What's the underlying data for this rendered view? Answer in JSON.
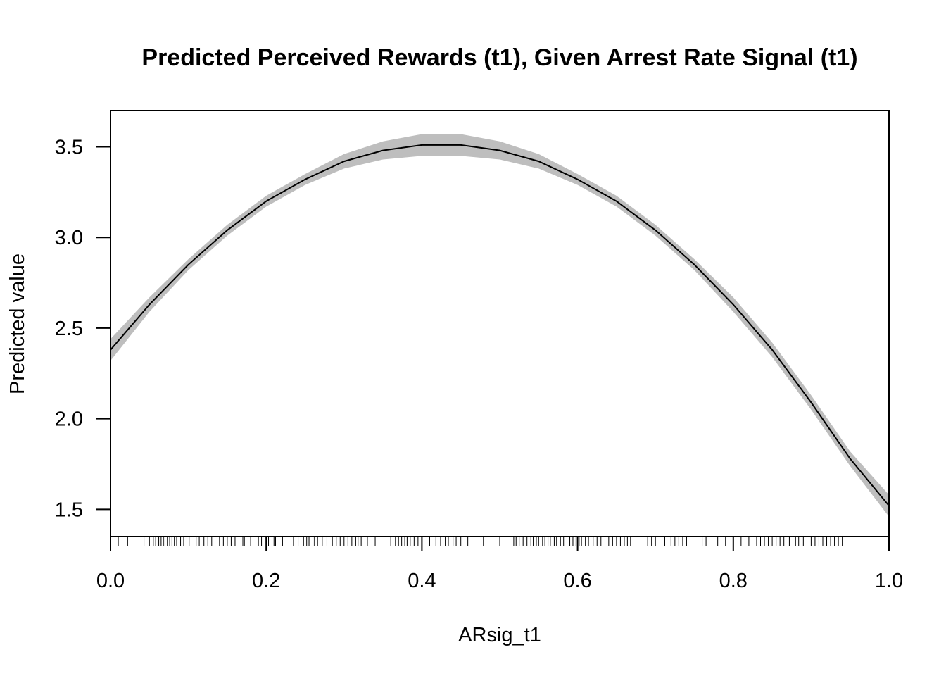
{
  "chart_data": {
    "type": "line",
    "title": "Predicted Perceived Rewards (t1), Given Arrest Rate Signal (t1)",
    "xlabel": "ARsig_t1",
    "ylabel": "Predicted value",
    "xlim": [
      0.0,
      1.0
    ],
    "ylim": [
      1.35,
      3.7
    ],
    "x_ticks": [
      0.0,
      0.2,
      0.4,
      0.6,
      0.8,
      1.0
    ],
    "x_tick_labels": [
      "0.0",
      "0.2",
      "0.4",
      "0.6",
      "0.8",
      "1.0"
    ],
    "y_ticks": [
      1.5,
      2.0,
      2.5,
      3.0,
      3.5
    ],
    "y_tick_labels": [
      "1.5",
      "2.0",
      "2.5",
      "3.0",
      "3.5"
    ],
    "grid": false,
    "series": [
      {
        "x": [
          0.0,
          0.05,
          0.1,
          0.15,
          0.2,
          0.25,
          0.3,
          0.35,
          0.4,
          0.45,
          0.5,
          0.55,
          0.6,
          0.65,
          0.7,
          0.75,
          0.8,
          0.85,
          0.9,
          0.95,
          1.0
        ],
        "y": [
          2.38,
          2.63,
          2.85,
          3.04,
          3.2,
          3.32,
          3.42,
          3.48,
          3.51,
          3.51,
          3.48,
          3.42,
          3.32,
          3.2,
          3.04,
          2.85,
          2.63,
          2.38,
          2.09,
          1.78,
          1.52
        ],
        "ci_lower": [
          2.32,
          2.59,
          2.82,
          3.01,
          3.17,
          3.29,
          3.38,
          3.43,
          3.45,
          3.45,
          3.43,
          3.38,
          3.29,
          3.17,
          3.01,
          2.82,
          2.59,
          2.34,
          2.05,
          1.74,
          1.46
        ],
        "ci_upper": [
          2.44,
          2.67,
          2.88,
          3.07,
          3.23,
          3.35,
          3.46,
          3.53,
          3.57,
          3.57,
          3.53,
          3.46,
          3.35,
          3.23,
          3.07,
          2.88,
          2.67,
          2.42,
          2.13,
          1.82,
          1.58
        ],
        "line_color": "#000000",
        "band_color": "#bebebe"
      }
    ],
    "rug": [
      0.01,
      0.022,
      0.043,
      0.05,
      0.055,
      0.058,
      0.062,
      0.065,
      0.068,
      0.07,
      0.073,
      0.076,
      0.079,
      0.082,
      0.085,
      0.09,
      0.094,
      0.101,
      0.11,
      0.114,
      0.12,
      0.125,
      0.13,
      0.14,
      0.145,
      0.15,
      0.155,
      0.16,
      0.17,
      0.172,
      0.18,
      0.19,
      0.194,
      0.2,
      0.203,
      0.21,
      0.212,
      0.221,
      0.235,
      0.241,
      0.248,
      0.252,
      0.255,
      0.26,
      0.262,
      0.266,
      0.272,
      0.278,
      0.285,
      0.29,
      0.295,
      0.3,
      0.305,
      0.31,
      0.315,
      0.318,
      0.322,
      0.33,
      0.34,
      0.36,
      0.366,
      0.37,
      0.374,
      0.378,
      0.381,
      0.385,
      0.39,
      0.395,
      0.4,
      0.41,
      0.418,
      0.424,
      0.43,
      0.434,
      0.44,
      0.444,
      0.45,
      0.459,
      0.479,
      0.5,
      0.518,
      0.521,
      0.525,
      0.53,
      0.535,
      0.54,
      0.543,
      0.547,
      0.55,
      0.555,
      0.558,
      0.562,
      0.565,
      0.57,
      0.573,
      0.578,
      0.582,
      0.59,
      0.594,
      0.598,
      0.602,
      0.605,
      0.61,
      0.614,
      0.62,
      0.625,
      0.63,
      0.64,
      0.645,
      0.65,
      0.655,
      0.66,
      0.664,
      0.668,
      0.69,
      0.695,
      0.7,
      0.712,
      0.72,
      0.725,
      0.73,
      0.735,
      0.74,
      0.76,
      0.765,
      0.78,
      0.79,
      0.8,
      0.81,
      0.82,
      0.83,
      0.835,
      0.84,
      0.845,
      0.85,
      0.855,
      0.86,
      0.865,
      0.872,
      0.88,
      0.884,
      0.89,
      0.9,
      0.905,
      0.91,
      0.915,
      0.92,
      0.925,
      0.93,
      0.935,
      0.94
    ]
  }
}
